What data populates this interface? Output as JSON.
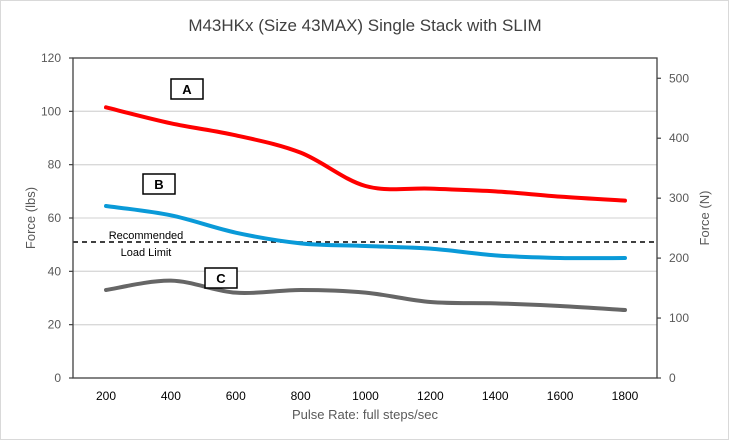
{
  "chart_data": {
    "type": "line",
    "title": "M43HKx (Size 43MAX) Single Stack with SLIM",
    "xlabel": "Pulse Rate:  full steps/sec",
    "ylabel": "Force (lbs)",
    "y2label": "Force (N)",
    "x": [
      200,
      400,
      600,
      800,
      1000,
      1200,
      1400,
      1600,
      1800
    ],
    "xlim": [
      100,
      1900
    ],
    "ylim": [
      0,
      120
    ],
    "y2lim": [
      0,
      533.8
    ],
    "yticks": [
      0,
      20,
      40,
      60,
      80,
      100,
      120
    ],
    "y2ticks": [
      0,
      100,
      200,
      300,
      400,
      500
    ],
    "grid": true,
    "smooth": true,
    "series": [
      {
        "name": "A",
        "color": "#ff0000",
        "values": [
          101.5,
          95.5,
          91,
          84.5,
          72,
          71,
          70,
          68,
          66.5
        ]
      },
      {
        "name": "B",
        "color": "#0a9ad8",
        "values": [
          64.5,
          61,
          54.5,
          50.5,
          49.5,
          48.5,
          46,
          45,
          45
        ]
      },
      {
        "name": "C",
        "color": "#666666",
        "values": [
          33,
          36.5,
          32,
          33,
          32,
          28.5,
          28,
          27,
          25.5
        ]
      }
    ],
    "reference_line": {
      "value": 51,
      "label_line1": "Recommended",
      "label_line2": "Load Limit",
      "style": "dashed",
      "color": "#000000"
    }
  }
}
